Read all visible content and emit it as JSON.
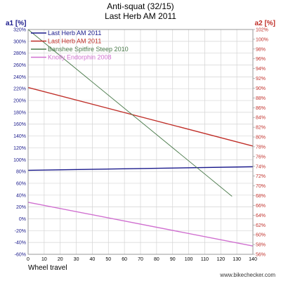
{
  "chart_data": {
    "type": "line",
    "title": "Anti-squat (32/15)",
    "subtitle": "Last Herb AM 2011",
    "xlabel": "Wheel travel",
    "y1label": "a1 [%]",
    "y2label": "a2 [%]",
    "x_ticks": [
      "0",
      "10",
      "20",
      "30",
      "40",
      "50",
      "60",
      "70",
      "80",
      "90",
      "100",
      "110",
      "120",
      "130",
      "140"
    ],
    "xlim": [
      0,
      140
    ],
    "y1lim": [
      -60,
      320
    ],
    "y1_ticks": [
      "320%",
      "300%",
      "280%",
      "260%",
      "240%",
      "220%",
      "200%",
      "180%",
      "160%",
      "140%",
      "120%",
      "100%",
      "80%",
      "60%",
      "40%",
      "20%",
      "0%",
      "-20%",
      "-40%",
      "-60%"
    ],
    "y2lim": [
      56,
      102
    ],
    "y2_ticks": [
      "102%",
      "100%",
      "98%",
      "96%",
      "94%",
      "92%",
      "90%",
      "88%",
      "86%",
      "84%",
      "82%",
      "80%",
      "78%",
      "76%",
      "74%",
      "72%",
      "70%",
      "68%",
      "66%",
      "64%",
      "62%",
      "60%",
      "58%",
      "56%"
    ],
    "grid": true,
    "legend_position": "top-left",
    "series": [
      {
        "name": "Last Herb AM 2011",
        "axis": "a1",
        "color": "#1a1a8c",
        "x": [
          0,
          140
        ],
        "y": [
          82,
          88
        ]
      },
      {
        "name": "Last Herb AM 2011",
        "axis": "a1",
        "color": "#c0302a",
        "x": [
          0,
          140
        ],
        "y": [
          222,
          123
        ]
      },
      {
        "name": "Banshee Spitfire Steep 2010",
        "axis": "a1",
        "color": "#4a7a4a",
        "x": [
          0,
          127
        ],
        "y": [
          320,
          38
        ]
      },
      {
        "name": "Knolly Endorphin 2008",
        "axis": "a1",
        "color": "#d070d0",
        "x": [
          0,
          140
        ],
        "y": [
          28,
          -46
        ]
      }
    ],
    "footer": "www.bikechecker.com"
  }
}
